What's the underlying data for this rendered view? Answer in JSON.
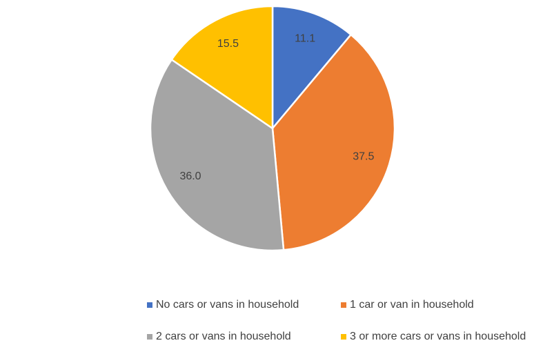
{
  "chart_data": {
    "type": "pie",
    "categories": [
      "No cars or vans in household",
      "1 car or van in household",
      "2 cars or vans in household",
      "3 or more cars or vans in household"
    ],
    "values": [
      11.1,
      37.5,
      36,
      15.5
    ],
    "value_labels": [
      "11.1",
      "37.5",
      "36.0",
      "15.5"
    ],
    "colors": [
      "#4472c4",
      "#ed7d31",
      "#a5a5a5",
      "#ffc000"
    ],
    "legend": "bottom"
  }
}
